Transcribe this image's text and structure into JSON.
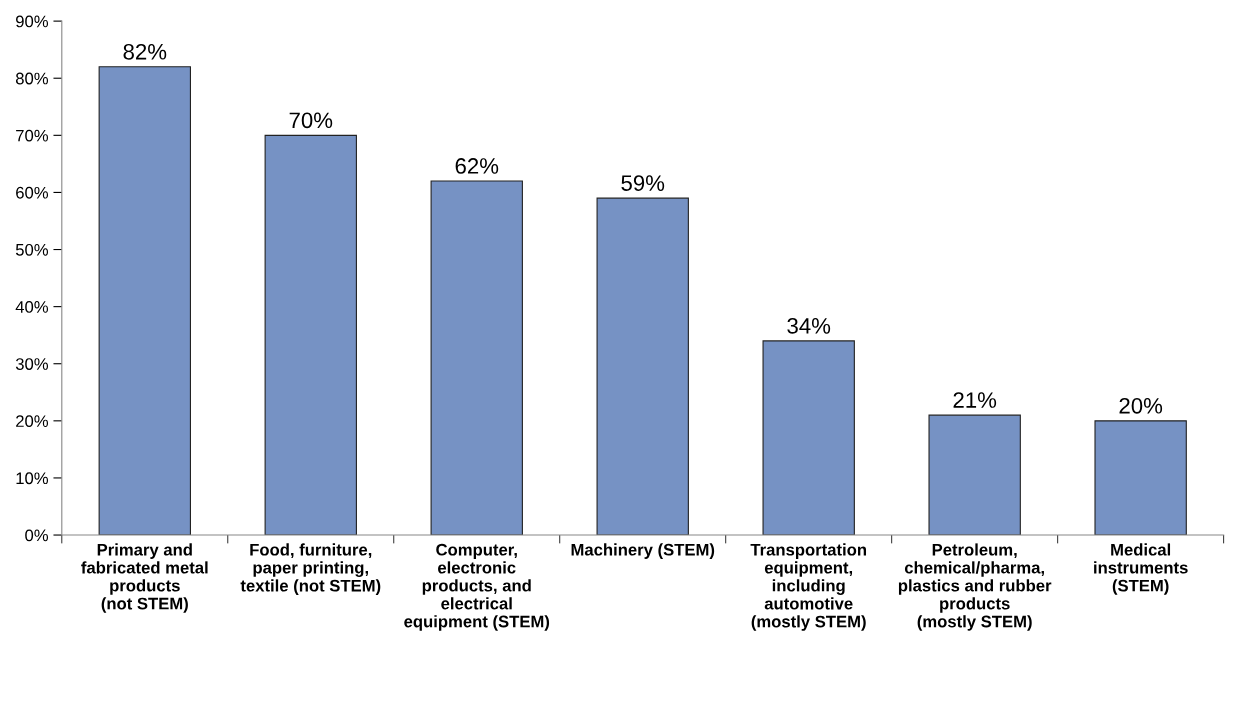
{
  "chart_data": {
    "type": "bar",
    "categories": [
      "Primary and\nfabricated metal\nproducts\n(not STEM)",
      "Food, furniture,\npaper printing,\ntextile (not STEM)",
      "Computer,\nelectronic\nproducts, and\nelectrical\nequipment (STEM)",
      "Machinery (STEM)",
      "Transportation\nequipment,\nincluding\nautomotive\n(mostly STEM)",
      "Petroleum,\nchemical/pharma,\nplastics and rubber\nproducts\n(mostly STEM)",
      "Medical\ninstruments\n(STEM)"
    ],
    "values": [
      82,
      70,
      62,
      59,
      34,
      21,
      20
    ],
    "color": "#7692c4",
    "value_labels": [
      "82%",
      "70%",
      "62%",
      "59%",
      "34%",
      "21%",
      "20%"
    ],
    "ylim": [
      0,
      90
    ],
    "yticks": [
      {
        "value": 0,
        "label": "0%"
      },
      {
        "value": 10,
        "label": "10%"
      },
      {
        "value": 20,
        "label": "20%"
      },
      {
        "value": 30,
        "label": "30%"
      },
      {
        "value": 40,
        "label": "40%"
      },
      {
        "value": 50,
        "label": "50%"
      },
      {
        "value": 60,
        "label": "60%"
      },
      {
        "value": 70,
        "label": "70%"
      },
      {
        "value": 80,
        "label": "80%"
      },
      {
        "value": 90,
        "label": "90%"
      }
    ],
    "grid": false,
    "legend": false
  }
}
